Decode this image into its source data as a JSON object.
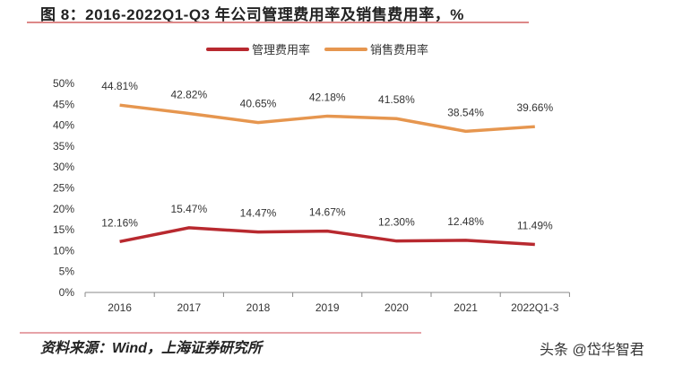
{
  "title": "图 8：2016-2022Q1-Q3 年公司管理费用率及销售费用率，%",
  "source": "资料来源：Wind，上海证券研究所",
  "watermark": "头条 @岱华智君",
  "chart_data": {
    "type": "line",
    "categories": [
      "2016",
      "2017",
      "2018",
      "2019",
      "2020",
      "2021",
      "2022Q1-3"
    ],
    "ylim": [
      0,
      50
    ],
    "yticks": [
      "0%",
      "5%",
      "10%",
      "15%",
      "20%",
      "25%",
      "30%",
      "35%",
      "40%",
      "45%",
      "50%"
    ],
    "grid": false,
    "legend_position": "top",
    "series": [
      {
        "name": "管理费用率",
        "color": "#b8292f",
        "values": [
          12.16,
          15.47,
          14.47,
          14.67,
          12.3,
          12.48,
          11.49
        ],
        "labels": [
          "12.16%",
          "15.47%",
          "14.47%",
          "14.67%",
          "12.30%",
          "12.48%",
          "11.49%"
        ]
      },
      {
        "name": "销售费用率",
        "color": "#e6964f",
        "values": [
          44.81,
          42.82,
          40.65,
          42.18,
          41.58,
          38.54,
          39.66
        ],
        "labels": [
          "44.81%",
          "42.82%",
          "40.65%",
          "42.18%",
          "41.58%",
          "38.54%",
          "39.66%"
        ]
      }
    ]
  }
}
